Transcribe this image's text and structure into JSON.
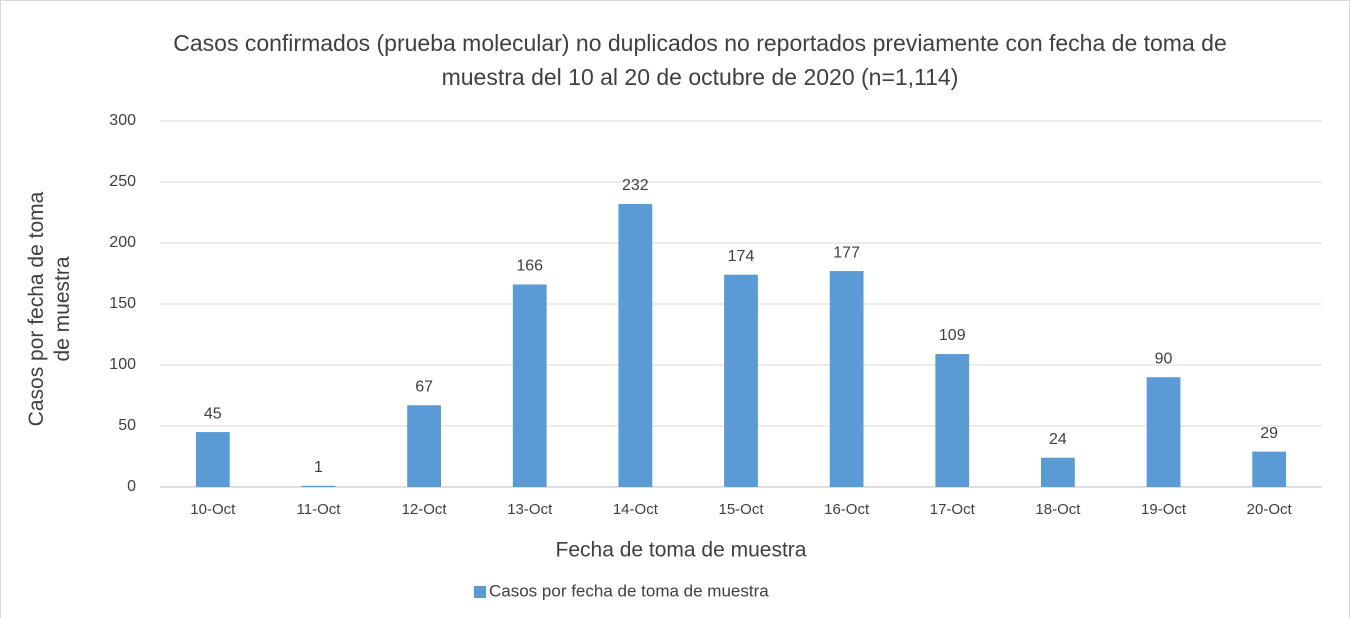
{
  "chart_data": {
    "type": "bar",
    "title": "Casos confirmados (prueba molecular) no duplicados no reportados previamente con fecha de toma de muestra del 10 al 20 de octubre de 2020 (n=1,114)",
    "x_label": "Fecha de toma de muestra",
    "y_label": "Casos por fecha de toma de muestra",
    "categories": [
      "10-Oct",
      "11-Oct",
      "12-Oct",
      "13-Oct",
      "14-Oct",
      "15-Oct",
      "16-Oct",
      "17-Oct",
      "18-Oct",
      "19-Oct",
      "20-Oct"
    ],
    "series": [
      {
        "name": "Casos por fecha de toma de muestra",
        "color": "#5b9bd5",
        "values": [
          45,
          1,
          67,
          166,
          232,
          174,
          177,
          109,
          24,
          90,
          29
        ]
      }
    ],
    "ylim": [
      0,
      300
    ],
    "yticks": [
      0,
      50,
      100,
      150,
      200,
      250,
      300
    ],
    "grid": true,
    "legend": "bottom"
  }
}
